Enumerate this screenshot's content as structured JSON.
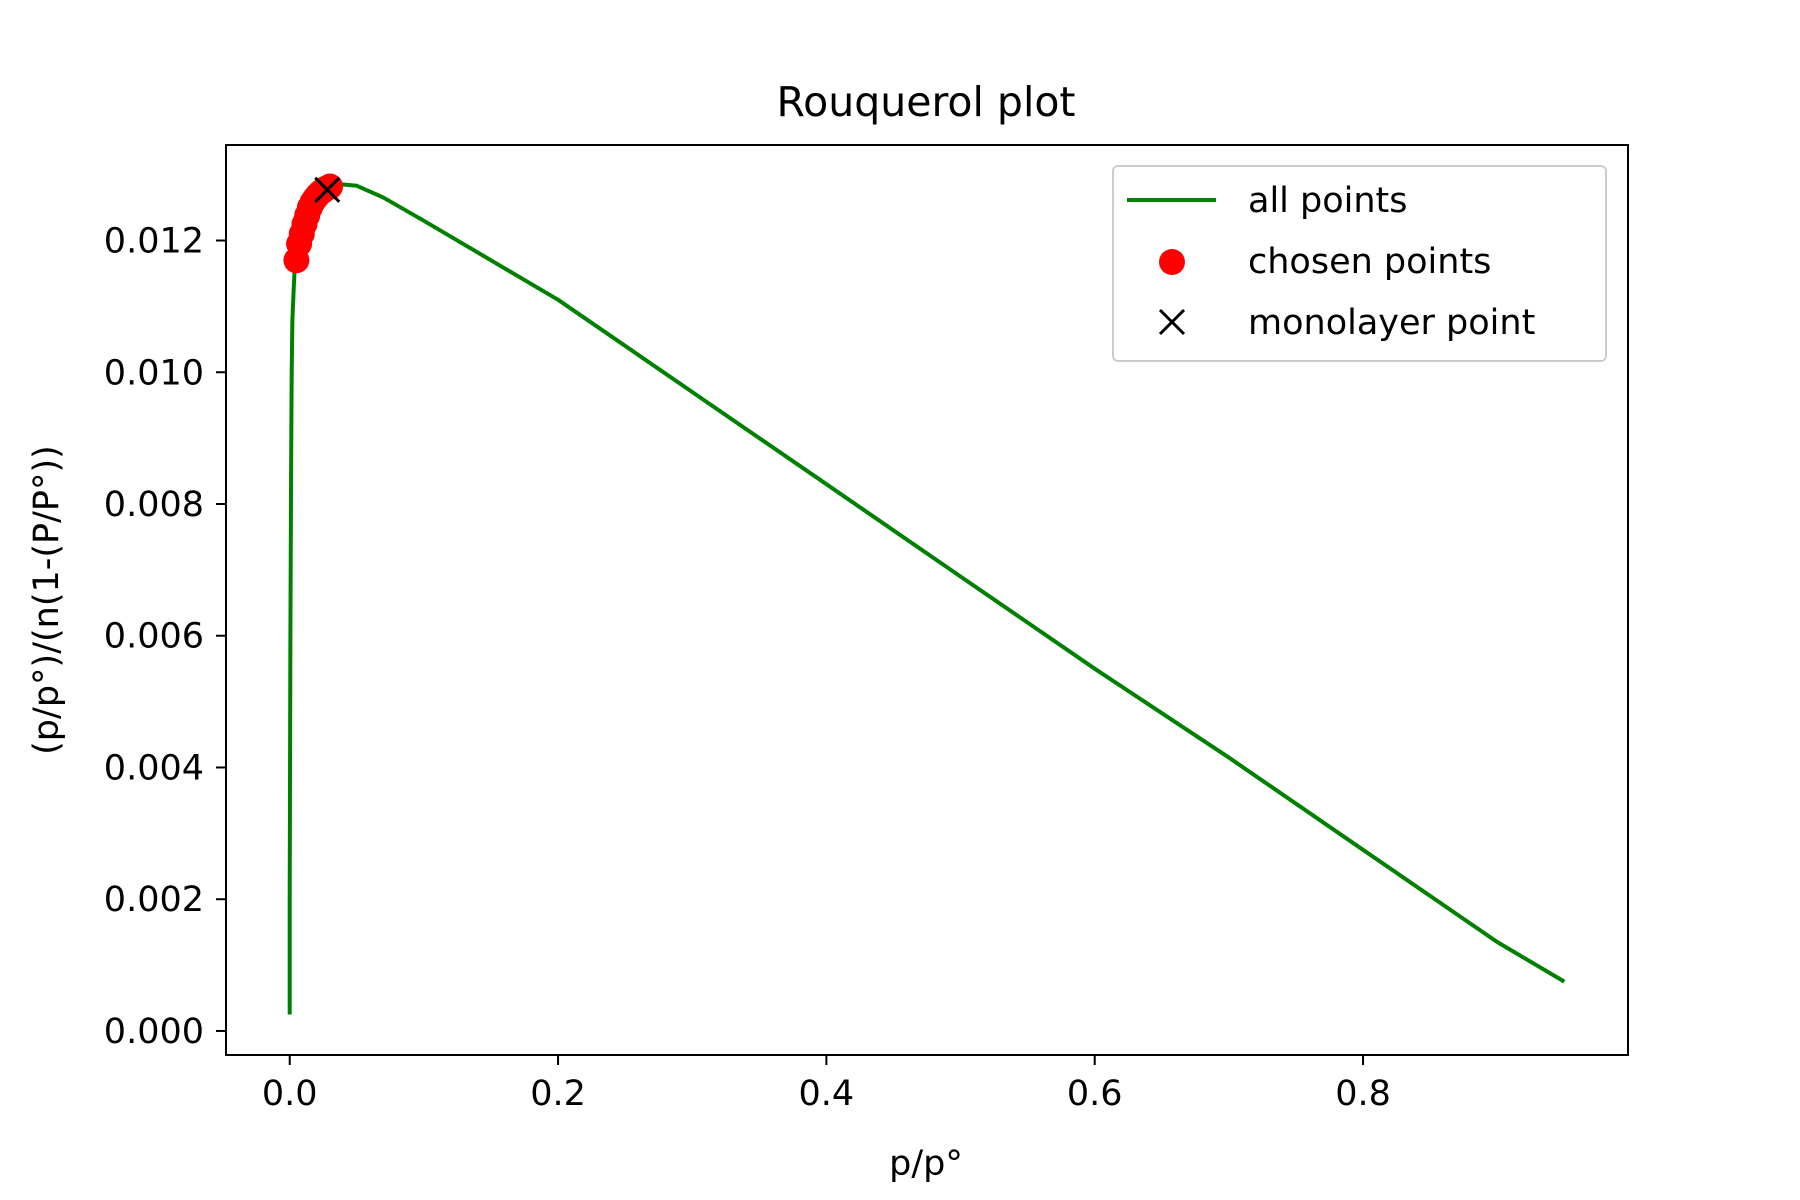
{
  "chart_data": {
    "type": "line",
    "title": "Rouquerol plot",
    "xlabel": "p/p°",
    "ylabel": "(p/p°)/(n(1-(P/P°))",
    "xlim": [
      -0.0475,
      0.9975
    ],
    "ylim": [
      -0.000365,
      0.01345
    ],
    "x_ticks": [
      0.0,
      0.2,
      0.4,
      0.6,
      0.8
    ],
    "x_tick_labels": [
      "0.0",
      "0.2",
      "0.4",
      "0.6",
      "0.8"
    ],
    "y_ticks": [
      0.0,
      0.002,
      0.004,
      0.006,
      0.008,
      0.01,
      0.012
    ],
    "y_tick_labels": [
      "0.000",
      "0.002",
      "0.004",
      "0.006",
      "0.008",
      "0.010",
      "0.012"
    ],
    "grid": false,
    "legend_position": "top-right",
    "series": [
      {
        "name": "all points",
        "kind": "line",
        "color": "#008000",
        "x": [
          0.0,
          0.0,
          0.0005,
          0.001,
          0.0015,
          0.002,
          0.003,
          0.004,
          0.006,
          0.01,
          0.015,
          0.02,
          0.025,
          0.03,
          0.04,
          0.05,
          0.07,
          0.1,
          0.15,
          0.2,
          0.3,
          0.4,
          0.5,
          0.6,
          0.7,
          0.8,
          0.9,
          0.95
        ],
        "y": [
          0.00025,
          0.002,
          0.006,
          0.0085,
          0.01,
          0.0108,
          0.0113,
          0.0117,
          0.012,
          0.0124,
          0.0126,
          0.0127,
          0.01275,
          0.0128,
          0.01285,
          0.01283,
          0.01265,
          0.0123,
          0.0117,
          0.0111,
          0.0097,
          0.0083,
          0.0069,
          0.0055,
          0.00415,
          0.00275,
          0.00135,
          0.00075
        ]
      },
      {
        "name": "chosen points",
        "kind": "scatter",
        "color": "#ff0000",
        "x": [
          0.005,
          0.007,
          0.009,
          0.011,
          0.013,
          0.015,
          0.017,
          0.019,
          0.021,
          0.023,
          0.025,
          0.027,
          0.03
        ],
        "y": [
          0.0117,
          0.01195,
          0.0121,
          0.01225,
          0.01238,
          0.0125,
          0.01258,
          0.01264,
          0.01269,
          0.01273,
          0.01276,
          0.01279,
          0.01282
        ]
      },
      {
        "name": "monolayer point",
        "kind": "marker-x",
        "color": "#000000",
        "x": [
          0.028
        ],
        "y": [
          0.01277
        ]
      }
    ]
  }
}
